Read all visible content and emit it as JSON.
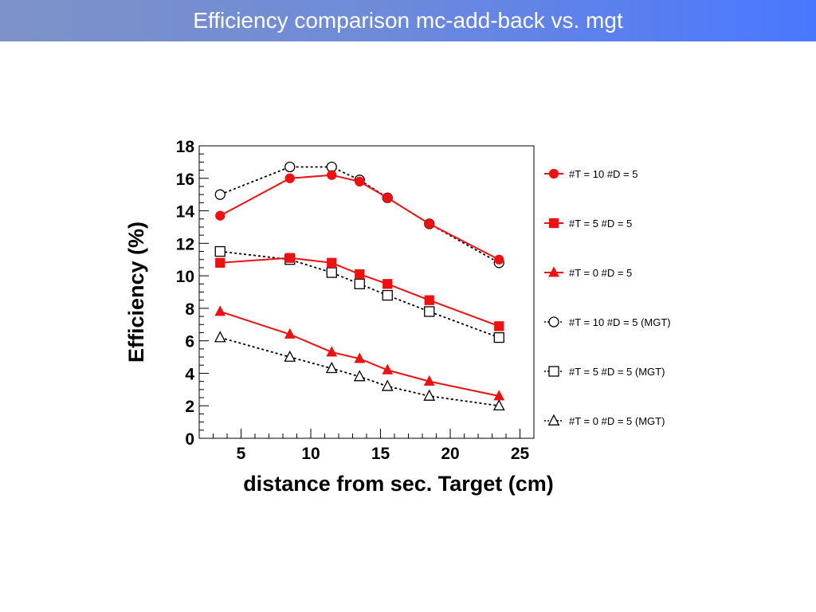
{
  "slide": {
    "title": "Efficiency comparison mc-add-back vs. mgt"
  },
  "chart_data": {
    "type": "line",
    "title": "",
    "xlabel": "distance from sec. Target (cm)",
    "ylabel": "Efficiency (%)",
    "xlim": [
      2,
      26
    ],
    "ylim": [
      0,
      18
    ],
    "xticks": [
      5,
      10,
      15,
      20,
      25
    ],
    "yticks": [
      0,
      2,
      4,
      6,
      8,
      10,
      12,
      14,
      16,
      18
    ],
    "grid": false,
    "legend_position": "right",
    "x": [
      3.5,
      8.5,
      11.5,
      13.5,
      15.5,
      18.5,
      23.5
    ],
    "series": [
      {
        "name": "#T = 10  #D = 5",
        "color": "#ee1111",
        "line": "solid",
        "marker": "circle",
        "filled": true,
        "values": [
          13.7,
          16.0,
          16.2,
          15.8,
          14.8,
          13.2,
          11.0
        ]
      },
      {
        "name": "#T = 5  #D = 5",
        "color": "#ee1111",
        "line": "solid",
        "marker": "square",
        "filled": true,
        "values": [
          10.8,
          11.1,
          10.8,
          10.1,
          9.5,
          8.5,
          6.9
        ]
      },
      {
        "name": "#T = 0  #D = 5",
        "color": "#ee1111",
        "line": "solid",
        "marker": "triangle",
        "filled": true,
        "values": [
          7.8,
          6.4,
          5.3,
          4.9,
          4.2,
          3.5,
          2.6
        ]
      },
      {
        "name": "#T = 10  #D = 5 (MGT)",
        "color": "#000000",
        "line": "dotted",
        "marker": "circle",
        "filled": false,
        "values": [
          15.0,
          16.7,
          16.7,
          15.9,
          14.8,
          13.2,
          10.8
        ]
      },
      {
        "name": "#T = 5  #D = 5 (MGT)",
        "color": "#000000",
        "line": "dotted",
        "marker": "square",
        "filled": false,
        "values": [
          11.5,
          11.0,
          10.2,
          9.5,
          8.8,
          7.8,
          6.2
        ]
      },
      {
        "name": "#T = 0  #D = 5 (MGT)",
        "color": "#000000",
        "line": "dotted",
        "marker": "triangle",
        "filled": false,
        "values": [
          6.2,
          5.0,
          4.3,
          3.8,
          3.2,
          2.6,
          2.0
        ]
      }
    ]
  }
}
